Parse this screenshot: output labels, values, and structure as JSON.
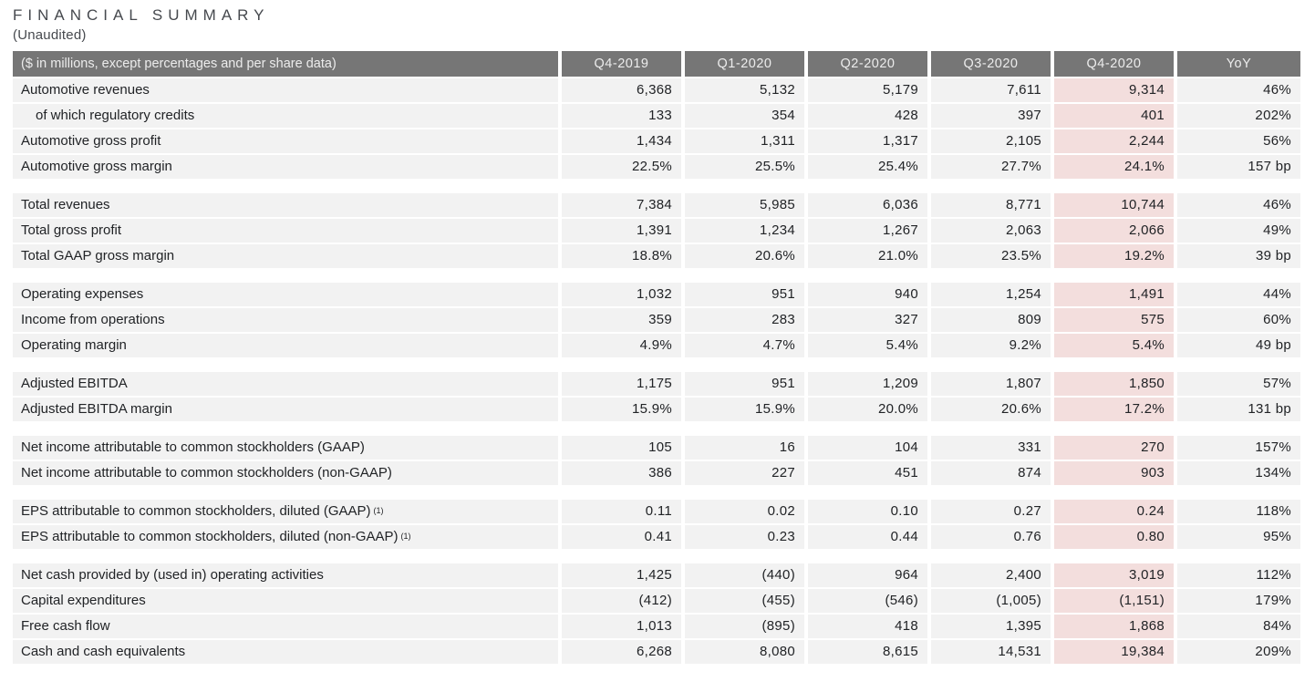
{
  "title": "FINANCIAL SUMMARY",
  "subtitle": "(Unaudited)",
  "colors": {
    "header_bg": "#767676",
    "header_text": "#ececec",
    "row_bg": "#f2f2f2",
    "highlight_bg": "#f3dedd",
    "text": "#212326",
    "title": "#46494e"
  },
  "chart_data": {
    "type": "table",
    "title": "FINANCIAL SUMMARY (Unaudited)",
    "caption": "($ in millions, except percentages and per share data)",
    "columns": [
      "Q4-2019",
      "Q1-2020",
      "Q2-2020",
      "Q3-2020",
      "Q4-2020",
      "YoY"
    ],
    "highlight_column": "Q4-2020",
    "groups": [
      {
        "rows": [
          {
            "label": "Automotive revenues",
            "indent": false,
            "sup": "",
            "values": [
              "6,368",
              "5,132",
              "5,179",
              "7,611",
              "9,314",
              "46%"
            ]
          },
          {
            "label": "of which regulatory credits",
            "indent": true,
            "sup": "",
            "values": [
              "133",
              "354",
              "428",
              "397",
              "401",
              "202%"
            ]
          },
          {
            "label": "Automotive gross profit",
            "indent": false,
            "sup": "",
            "values": [
              "1,434",
              "1,311",
              "1,317",
              "2,105",
              "2,244",
              "56%"
            ]
          },
          {
            "label": "Automotive gross margin",
            "indent": false,
            "sup": "",
            "values": [
              "22.5%",
              "25.5%",
              "25.4%",
              "27.7%",
              "24.1%",
              "157 bp"
            ]
          }
        ]
      },
      {
        "rows": [
          {
            "label": "Total revenues",
            "indent": false,
            "sup": "",
            "values": [
              "7,384",
              "5,985",
              "6,036",
              "8,771",
              "10,744",
              "46%"
            ]
          },
          {
            "label": "Total gross profit",
            "indent": false,
            "sup": "",
            "values": [
              "1,391",
              "1,234",
              "1,267",
              "2,063",
              "2,066",
              "49%"
            ]
          },
          {
            "label": "Total GAAP gross margin",
            "indent": false,
            "sup": "",
            "values": [
              "18.8%",
              "20.6%",
              "21.0%",
              "23.5%",
              "19.2%",
              "39 bp"
            ]
          }
        ]
      },
      {
        "rows": [
          {
            "label": "Operating expenses",
            "indent": false,
            "sup": "",
            "values": [
              "1,032",
              "951",
              "940",
              "1,254",
              "1,491",
              "44%"
            ]
          },
          {
            "label": "Income from operations",
            "indent": false,
            "sup": "",
            "values": [
              "359",
              "283",
              "327",
              "809",
              "575",
              "60%"
            ]
          },
          {
            "label": "Operating margin",
            "indent": false,
            "sup": "",
            "values": [
              "4.9%",
              "4.7%",
              "5.4%",
              "9.2%",
              "5.4%",
              "49 bp"
            ]
          }
        ]
      },
      {
        "rows": [
          {
            "label": "Adjusted EBITDA",
            "indent": false,
            "sup": "",
            "values": [
              "1,175",
              "951",
              "1,209",
              "1,807",
              "1,850",
              "57%"
            ]
          },
          {
            "label": "Adjusted EBITDA margin",
            "indent": false,
            "sup": "",
            "values": [
              "15.9%",
              "15.9%",
              "20.0%",
              "20.6%",
              "17.2%",
              "131 bp"
            ]
          }
        ]
      },
      {
        "rows": [
          {
            "label": "Net income attributable to common stockholders (GAAP)",
            "indent": false,
            "sup": "",
            "values": [
              "105",
              "16",
              "104",
              "331",
              "270",
              "157%"
            ]
          },
          {
            "label": "Net income attributable to common stockholders (non-GAAP)",
            "indent": false,
            "sup": "",
            "values": [
              "386",
              "227",
              "451",
              "874",
              "903",
              "134%"
            ]
          }
        ]
      },
      {
        "rows": [
          {
            "label": "EPS attributable to common stockholders, diluted (GAAP)",
            "indent": false,
            "sup": "(1)",
            "values": [
              "0.11",
              "0.02",
              "0.10",
              "0.27",
              "0.24",
              "118%"
            ]
          },
          {
            "label": "EPS attributable to common stockholders, diluted (non-GAAP)",
            "indent": false,
            "sup": "(1)",
            "values": [
              "0.41",
              "0.23",
              "0.44",
              "0.76",
              "0.80",
              "95%"
            ]
          }
        ]
      },
      {
        "rows": [
          {
            "label": "Net cash provided by (used in) operating activities",
            "indent": false,
            "sup": "",
            "values": [
              "1,425",
              "(440)",
              "964",
              "2,400",
              "3,019",
              "112%"
            ]
          },
          {
            "label": "Capital expenditures",
            "indent": false,
            "sup": "",
            "values": [
              "(412)",
              "(455)",
              "(546)",
              "(1,005)",
              "(1,151)",
              "179%"
            ]
          },
          {
            "label": "Free cash flow",
            "indent": false,
            "sup": "",
            "values": [
              "1,013",
              "(895)",
              "418",
              "1,395",
              "1,868",
              "84%"
            ]
          },
          {
            "label": "Cash and cash equivalents",
            "indent": false,
            "sup": "",
            "values": [
              "6,268",
              "8,080",
              "8,615",
              "14,531",
              "19,384",
              "209%"
            ]
          }
        ]
      }
    ]
  }
}
